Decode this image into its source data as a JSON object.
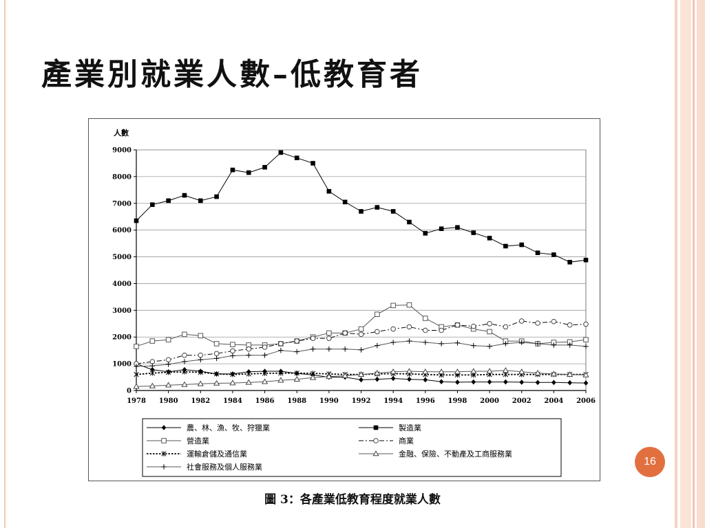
{
  "slide": {
    "title": "產業別就業人數–低教育者",
    "page_number": "16",
    "caption": "圖 3：各產業低教育程度就業人數"
  },
  "chart_data": {
    "type": "line",
    "ylabel": "人數",
    "ylim": [
      0,
      9000
    ],
    "yticks": [
      0,
      1000,
      2000,
      3000,
      4000,
      5000,
      6000,
      7000,
      8000,
      9000
    ],
    "xlim": [
      1978,
      2006
    ],
    "xticks": [
      1978,
      1980,
      1982,
      1984,
      1986,
      1988,
      1990,
      1992,
      1994,
      1996,
      1998,
      2000,
      2002,
      2004,
      2006
    ],
    "grid": "horizontal",
    "legend_position": "bottom",
    "x": [
      1978,
      1979,
      1980,
      1981,
      1982,
      1983,
      1984,
      1985,
      1986,
      1987,
      1988,
      1989,
      1990,
      1991,
      1992,
      1993,
      1994,
      1995,
      1996,
      1997,
      1998,
      1999,
      2000,
      2001,
      2002,
      2003,
      2004,
      2005,
      2006
    ],
    "series": [
      {
        "name": "農、林、漁、牧、狩獵業",
        "marker": "diamond",
        "dash": "solid",
        "values": [
          1000,
          780,
          700,
          780,
          720,
          620,
          620,
          700,
          720,
          720,
          640,
          580,
          500,
          500,
          400,
          420,
          450,
          420,
          400,
          330,
          310,
          320,
          320,
          320,
          310,
          300,
          300,
          290,
          280
        ]
      },
      {
        "name": "製造業",
        "marker": "square-filled",
        "dash": "solid",
        "values": [
          6350,
          6950,
          7100,
          7300,
          7100,
          7250,
          8250,
          8150,
          8350,
          8900,
          8700,
          8500,
          7450,
          7050,
          6700,
          6850,
          6700,
          6300,
          5880,
          6050,
          6100,
          5900,
          5700,
          5400,
          5450,
          5150,
          5080,
          4800,
          4880
        ]
      },
      {
        "name": "營造業",
        "marker": "square-open",
        "dash": "solid",
        "values": [
          1650,
          1850,
          1900,
          2100,
          2050,
          1750,
          1720,
          1700,
          1700,
          1750,
          1850,
          2000,
          2150,
          2150,
          2300,
          2850,
          3180,
          3200,
          2700,
          2380,
          2450,
          2300,
          2200,
          1850,
          1850,
          1750,
          1800,
          1820,
          1900
        ]
      },
      {
        "name": "商業",
        "marker": "circle-open",
        "dash": "dashdot",
        "values": [
          1000,
          1080,
          1150,
          1320,
          1320,
          1380,
          1480,
          1550,
          1620,
          1750,
          1850,
          1950,
          1950,
          2150,
          2100,
          2200,
          2300,
          2380,
          2250,
          2250,
          2450,
          2400,
          2500,
          2380,
          2600,
          2520,
          2580,
          2450,
          2480
        ]
      },
      {
        "name": "運輸倉儲及通信業",
        "marker": "star",
        "dash": "dotted",
        "values": [
          600,
          650,
          680,
          700,
          680,
          620,
          600,
          620,
          640,
          650,
          650,
          640,
          620,
          600,
          600,
          620,
          630,
          620,
          600,
          580,
          580,
          580,
          600,
          600,
          600,
          600,
          600,
          600,
          600
        ]
      },
      {
        "name": "金融、保險、不動產及工商服務業",
        "marker": "triangle-open",
        "dash": "solid",
        "values": [
          150,
          170,
          200,
          220,
          250,
          270,
          280,
          300,
          330,
          380,
          420,
          480,
          520,
          550,
          600,
          650,
          700,
          720,
          700,
          700,
          700,
          720,
          720,
          750,
          700,
          650,
          620,
          600,
          580
        ]
      },
      {
        "name": "社會服務及個人服務業",
        "marker": "plus",
        "dash": "solid",
        "values": [
          900,
          920,
          980,
          1080,
          1150,
          1200,
          1300,
          1320,
          1320,
          1500,
          1450,
          1550,
          1550,
          1550,
          1520,
          1680,
          1800,
          1850,
          1800,
          1750,
          1780,
          1680,
          1650,
          1750,
          1800,
          1750,
          1700,
          1700,
          1650
        ]
      }
    ]
  }
}
